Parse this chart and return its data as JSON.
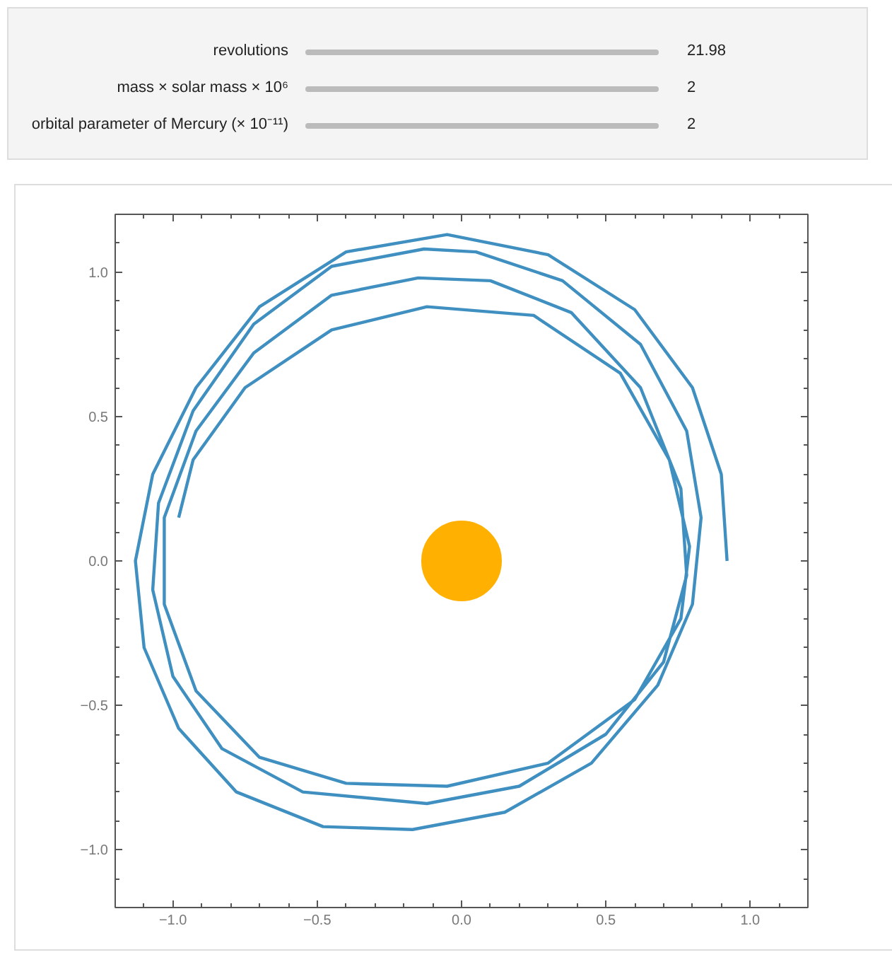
{
  "chart_data": {
    "type": "line",
    "annotations": [
      "revolutions",
      "21.98",
      "mass × solar mass × 10⁶",
      "2",
      "orbital parameter of Mercury (× 10⁻¹¹)",
      "2"
    ],
    "xlim": [
      -1.2,
      1.2
    ],
    "ylim": [
      -1.2,
      1.2
    ],
    "xticks": [
      {
        "value": -1,
        "label": "−1.0"
      },
      {
        "value": -0.5,
        "label": "−0.5"
      },
      {
        "value": 0,
        "label": "0.0"
      },
      {
        "value": 0.5,
        "label": "0.5"
      },
      {
        "value": 1,
        "label": "1.0"
      }
    ],
    "yticks": [
      {
        "value": -1,
        "label": "−1.0"
      },
      {
        "value": -0.5,
        "label": "−0.5"
      },
      {
        "value": 0,
        "label": "0.0"
      },
      {
        "value": 0.5,
        "label": "0.5"
      },
      {
        "value": 1,
        "label": "1.0"
      }
    ],
    "grid": false,
    "series": [
      {
        "color": "#3f8fc0",
        "x": [
          0.92,
          0.9,
          0.8,
          0.6,
          0.3,
          -0.05,
          -0.4,
          -0.7,
          -0.92,
          -1.07,
          -1.13,
          -1.1,
          -0.98,
          -0.78,
          -0.48,
          -0.17,
          0.15,
          0.45,
          0.68,
          0.8,
          0.83,
          0.78,
          0.62,
          0.35,
          0.05,
          -0.13,
          -0.45,
          -0.72,
          -0.93,
          -1.05,
          -1.07,
          -1.0,
          -0.83,
          -0.55,
          -0.12,
          0.2,
          0.5,
          0.7,
          0.78,
          0.76,
          0.62,
          0.38,
          0.1,
          -0.15,
          -0.45,
          -0.72,
          -0.92,
          -1.03,
          -1.03,
          -0.92,
          -0.7,
          -0.4,
          -0.05,
          0.3,
          0.6,
          0.76,
          0.79,
          0.72,
          0.55,
          0.25,
          -0.12,
          -0.45,
          -0.75,
          -0.93,
          -0.98
        ],
        "values": [
          0.0,
          0.3,
          0.6,
          0.87,
          1.06,
          1.13,
          1.07,
          0.88,
          0.6,
          0.3,
          0.0,
          -0.3,
          -0.58,
          -0.8,
          -0.92,
          -0.93,
          -0.87,
          -0.7,
          -0.43,
          -0.15,
          0.15,
          0.45,
          0.75,
          0.97,
          1.07,
          1.08,
          1.02,
          0.82,
          0.52,
          0.2,
          -0.1,
          -0.4,
          -0.65,
          -0.8,
          -0.84,
          -0.78,
          -0.6,
          -0.35,
          -0.05,
          0.25,
          0.6,
          0.86,
          0.97,
          0.98,
          0.92,
          0.72,
          0.45,
          0.15,
          -0.15,
          -0.45,
          -0.68,
          -0.77,
          -0.78,
          -0.7,
          -0.48,
          -0.2,
          0.05,
          0.35,
          0.65,
          0.85,
          0.88,
          0.8,
          0.6,
          0.35,
          0.15
        ]
      },
      {
        "type": "scatter",
        "color": "#ffb000",
        "marker": "circle",
        "x": [
          0
        ],
        "values": [
          0
        ]
      }
    ]
  }
}
